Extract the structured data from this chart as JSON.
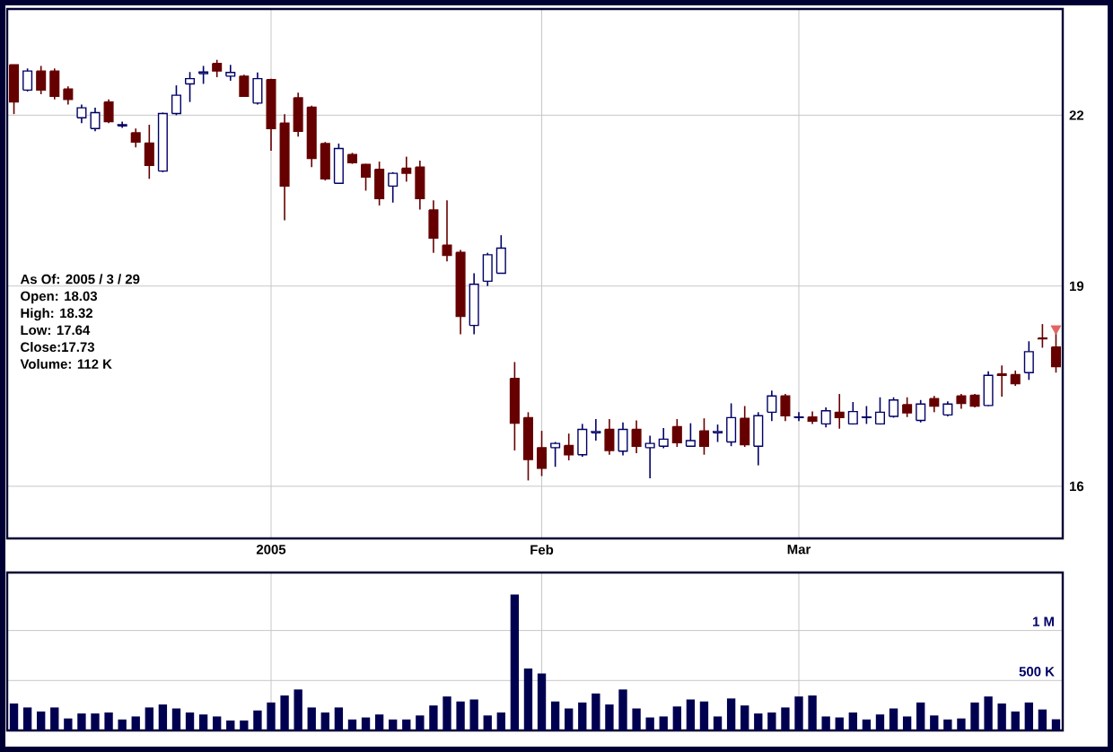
{
  "chart_data": [
    {
      "type": "candlestick",
      "log": "y",
      "grid": true,
      "categories": [
        null,
        null,
        null,
        null,
        null,
        null,
        null,
        null,
        null,
        null,
        null,
        null,
        null,
        null,
        null,
        null,
        null,
        null,
        null,
        "2005",
        null,
        null,
        null,
        null,
        null,
        null,
        null,
        null,
        null,
        null,
        null,
        null,
        null,
        null,
        null,
        null,
        null,
        null,
        null,
        "Feb",
        null,
        null,
        null,
        null,
        null,
        null,
        null,
        null,
        null,
        null,
        null,
        null,
        null,
        null,
        null,
        null,
        null,
        null,
        "Mar",
        null,
        null,
        null,
        null,
        null,
        null,
        null,
        null,
        null,
        null,
        null,
        null,
        null,
        null,
        null,
        null,
        null,
        null,
        null
      ],
      "ylim": [
        15.3,
        24.1
      ],
      "yticks": [
        16,
        19,
        22
      ],
      "ohlc": [
        [
          22.97,
          22.97,
          22.02,
          22.25
        ],
        [
          22.48,
          22.9,
          22.45,
          22.85
        ],
        [
          22.85,
          22.95,
          22.4,
          22.48
        ],
        [
          22.85,
          22.9,
          22.3,
          22.36
        ],
        [
          22.5,
          22.55,
          22.2,
          22.3
        ],
        [
          21.95,
          22.2,
          21.85,
          22.14
        ],
        [
          21.75,
          22.14,
          21.7,
          22.05
        ],
        [
          22.25,
          22.3,
          21.85,
          21.88
        ],
        [
          21.8,
          21.88,
          21.76,
          21.82
        ],
        [
          21.67,
          21.75,
          21.4,
          21.5
        ],
        [
          21.48,
          21.82,
          20.83,
          21.07
        ],
        [
          20.97,
          22.05,
          20.95,
          22.03
        ],
        [
          22.03,
          22.57,
          22.0,
          22.38
        ],
        [
          22.6,
          22.83,
          22.25,
          22.7
        ],
        [
          22.8,
          22.95,
          22.6,
          22.83
        ],
        [
          23.0,
          23.07,
          22.73,
          22.85
        ],
        [
          22.75,
          22.97,
          22.66,
          22.82
        ],
        [
          22.75,
          22.78,
          22.36,
          22.36
        ],
        [
          22.23,
          22.82,
          22.2,
          22.7
        ],
        [
          22.68,
          22.7,
          21.34,
          21.75
        ],
        [
          21.85,
          22.02,
          20.1,
          20.7
        ],
        [
          22.33,
          22.43,
          21.6,
          21.7
        ],
        [
          22.15,
          22.18,
          21.04,
          21.2
        ],
        [
          21.47,
          21.5,
          20.8,
          20.83
        ],
        [
          20.75,
          21.47,
          20.74,
          21.38
        ],
        [
          21.27,
          21.3,
          21.1,
          21.12
        ],
        [
          21.09,
          21.1,
          20.62,
          20.86
        ],
        [
          21.0,
          21.14,
          20.36,
          20.48
        ],
        [
          20.7,
          20.95,
          20.41,
          20.93
        ],
        [
          21.02,
          21.23,
          20.78,
          20.93
        ],
        [
          21.04,
          21.16,
          20.29,
          20.48
        ],
        [
          20.28,
          20.45,
          19.55,
          19.8
        ],
        [
          19.68,
          20.45,
          19.41,
          19.51
        ],
        [
          19.56,
          19.6,
          18.23,
          18.51
        ],
        [
          18.37,
          19.21,
          18.23,
          19.03
        ],
        [
          19.08,
          19.55,
          19.0,
          19.52
        ],
        [
          19.21,
          19.85,
          19.21,
          19.63
        ],
        [
          17.55,
          17.8,
          16.5,
          16.89
        ],
        [
          16.97,
          17.05,
          16.08,
          16.37
        ],
        [
          16.54,
          16.78,
          16.14,
          16.25
        ],
        [
          16.54,
          16.62,
          16.27,
          16.6
        ],
        [
          16.57,
          16.74,
          16.36,
          16.44
        ],
        [
          16.44,
          16.88,
          16.41,
          16.8
        ],
        [
          16.75,
          16.95,
          16.64,
          16.77
        ],
        [
          16.8,
          16.95,
          16.44,
          16.5
        ],
        [
          16.49,
          16.9,
          16.43,
          16.8
        ],
        [
          16.8,
          16.93,
          16.46,
          16.56
        ],
        [
          16.54,
          16.71,
          16.11,
          16.6
        ],
        [
          16.56,
          16.82,
          16.53,
          16.66
        ],
        [
          16.84,
          16.95,
          16.55,
          16.61
        ],
        [
          16.56,
          16.89,
          16.56,
          16.64
        ],
        [
          16.78,
          16.96,
          16.44,
          16.56
        ],
        [
          16.75,
          16.87,
          16.62,
          16.77
        ],
        [
          16.62,
          17.18,
          16.56,
          16.97
        ],
        [
          16.96,
          17.14,
          16.55,
          16.58
        ],
        [
          16.56,
          17.05,
          16.29,
          17.0
        ],
        [
          17.05,
          17.37,
          16.92,
          17.29
        ],
        [
          17.29,
          17.32,
          16.92,
          17.0
        ],
        [
          16.97,
          17.05,
          16.92,
          16.98
        ],
        [
          16.98,
          17.06,
          16.88,
          16.92
        ],
        [
          16.88,
          17.12,
          16.83,
          17.07
        ],
        [
          17.05,
          17.32,
          16.81,
          16.97
        ],
        [
          16.88,
          17.2,
          16.87,
          17.06
        ],
        [
          16.97,
          17.14,
          16.88,
          16.98
        ],
        [
          16.88,
          17.27,
          16.87,
          17.05
        ],
        [
          16.99,
          17.27,
          16.97,
          17.23
        ],
        [
          17.16,
          17.27,
          16.98,
          17.04
        ],
        [
          16.93,
          17.23,
          16.9,
          17.17
        ],
        [
          17.25,
          17.29,
          17.05,
          17.14
        ],
        [
          17.01,
          17.21,
          16.99,
          17.17
        ],
        [
          17.29,
          17.32,
          17.1,
          17.18
        ],
        [
          17.3,
          17.32,
          17.12,
          17.14
        ],
        [
          17.15,
          17.66,
          17.14,
          17.6
        ],
        [
          17.62,
          17.75,
          17.28,
          17.6
        ],
        [
          17.61,
          17.67,
          17.44,
          17.47
        ],
        [
          17.64,
          18.12,
          17.53,
          17.96
        ],
        [
          18.17,
          18.39,
          18.02,
          18.16
        ],
        [
          18.03,
          18.32,
          17.64,
          17.73
        ]
      ],
      "colors": [
        "#660000",
        "#000066",
        "#660000",
        "#660000",
        "#660000",
        "#000066",
        "#000066",
        "#660000",
        "#000066",
        "#660000",
        "#660000",
        "#000066",
        "#000066",
        "#000066",
        "#000066",
        "#660000",
        "#000066",
        "#660000",
        "#000066",
        "#660000",
        "#660000",
        "#660000",
        "#660000",
        "#660000",
        "#000066",
        "#660000",
        "#660000",
        "#660000",
        "#000066",
        "#660000",
        "#660000",
        "#660000",
        "#660000",
        "#660000",
        "#000066",
        "#000066",
        "#000066",
        "#660000",
        "#660000",
        "#660000",
        "#000066",
        "#660000",
        "#000066",
        "#000066",
        "#660000",
        "#000066",
        "#660000",
        "#000066",
        "#000066",
        "#660000",
        "#000066",
        "#660000",
        "#000066",
        "#000066",
        "#660000",
        "#000066",
        "#000066",
        "#660000",
        "#000066",
        "#660000",
        "#000066",
        "#660000",
        "#000066",
        "#000066",
        "#000066",
        "#000066",
        "#660000",
        "#000066",
        "#660000",
        "#000066",
        "#660000",
        "#660000",
        "#000066",
        "#660000",
        "#660000",
        "#000066",
        "#660000",
        "#660000"
      ],
      "series": [
        {
          "type": "scatter",
          "marker": "triangle",
          "color": "#e06666",
          "values": [
            null,
            null,
            null,
            null,
            null,
            null,
            null,
            null,
            null,
            null,
            null,
            null,
            null,
            null,
            null,
            null,
            null,
            null,
            null,
            null,
            null,
            null,
            null,
            null,
            null,
            null,
            null,
            null,
            null,
            null,
            null,
            null,
            null,
            null,
            null,
            null,
            null,
            null,
            null,
            null,
            null,
            null,
            null,
            null,
            null,
            null,
            null,
            null,
            null,
            null,
            null,
            null,
            null,
            null,
            null,
            null,
            null,
            null,
            null,
            null,
            null,
            null,
            null,
            null,
            null,
            null,
            null,
            null,
            null,
            null,
            null,
            null,
            null,
            null,
            null,
            null,
            null,
            18.32
          ]
        }
      ],
      "annotations": [
        "As Of: 2005 / 3 / 29",
        "Open: 18.03",
        "High: 18.32",
        "Low: 17.64",
        "Close:17.73",
        "Volume: 112 K"
      ]
    },
    {
      "type": "bar",
      "grid": true,
      "tick_labels": "y",
      "color": "#000050",
      "categories": [
        null,
        null,
        null,
        null,
        null,
        null,
        null,
        null,
        null,
        null,
        null,
        null,
        null,
        null,
        null,
        null,
        null,
        null,
        null,
        null,
        null,
        null,
        null,
        null,
        null,
        null,
        null,
        null,
        null,
        null,
        null,
        null,
        null,
        null,
        null,
        null,
        null,
        null,
        null,
        null,
        null,
        null,
        null,
        null,
        null,
        null,
        null,
        null,
        null,
        null,
        null,
        null,
        null,
        null,
        null,
        null,
        null,
        null,
        null,
        null,
        null,
        null,
        null,
        null,
        null,
        null,
        null,
        null,
        null,
        null,
        null,
        null,
        null,
        null,
        null,
        null,
        null,
        null
      ],
      "ylim": [
        0,
        1580000
      ],
      "yticks": [
        {
          "value": 500000,
          "label": "500 K"
        },
        {
          "value": 1000000,
          "label": "1 M"
        }
      ],
      "values": [
        270000,
        230000,
        190000,
        230000,
        120000,
        170000,
        170000,
        180000,
        110000,
        140000,
        230000,
        260000,
        220000,
        180000,
        160000,
        140000,
        100000,
        100000,
        200000,
        280000,
        350000,
        410000,
        230000,
        180000,
        230000,
        110000,
        130000,
        160000,
        110000,
        110000,
        150000,
        250000,
        340000,
        290000,
        310000,
        150000,
        180000,
        1360000,
        620000,
        570000,
        290000,
        220000,
        280000,
        370000,
        260000,
        410000,
        220000,
        130000,
        140000,
        240000,
        310000,
        290000,
        140000,
        320000,
        250000,
        170000,
        180000,
        230000,
        340000,
        350000,
        140000,
        130000,
        180000,
        110000,
        160000,
        220000,
        140000,
        280000,
        150000,
        110000,
        120000,
        280000,
        340000,
        270000,
        190000,
        280000,
        210000,
        112000
      ]
    }
  ]
}
